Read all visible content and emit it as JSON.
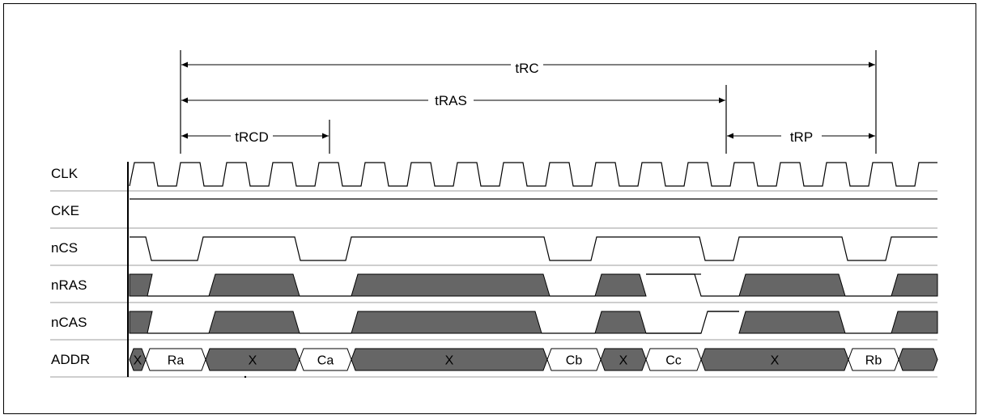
{
  "signals": [
    {
      "label": "CLK"
    },
    {
      "label": "CKE"
    },
    {
      "label": "nCS"
    },
    {
      "label": "nRAS"
    },
    {
      "label": "nCAS"
    },
    {
      "label": "ADDR"
    }
  ],
  "timing": [
    {
      "label": "tRC"
    },
    {
      "label": "tRAS"
    },
    {
      "label": "tRCD"
    },
    {
      "label": "tRP"
    }
  ],
  "addr_labels": [
    "X",
    "Ra",
    "X",
    "Ca",
    "X",
    "Cb",
    "X",
    "Cc",
    "X",
    "Rb"
  ],
  "colors": {
    "fill": "#666666",
    "line": "#000000",
    "grid": "#b0b0b0"
  }
}
